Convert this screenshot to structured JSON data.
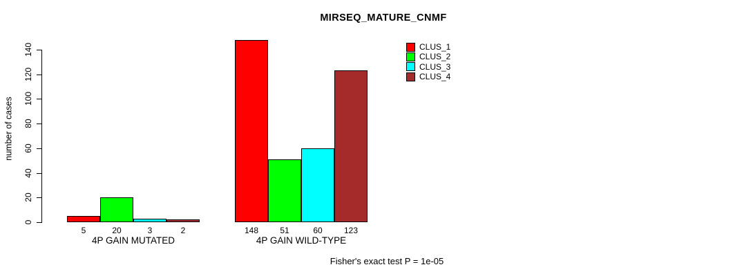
{
  "page": {
    "background_color": "#FFFFFF",
    "text_color": "#000000"
  },
  "chart_data": {
    "type": "bar",
    "title": "MIRSEQ_MATURE_CNMF",
    "ylabel": "number of cases",
    "xlabel": "",
    "ylim": [
      0,
      140
    ],
    "yticks": [
      0,
      20,
      40,
      60,
      80,
      100,
      120,
      140
    ],
    "grid": false,
    "legend_position": "top-right",
    "categories": [
      "4P GAIN MUTATED",
      "4P GAIN WILD-TYPE"
    ],
    "series": [
      {
        "name": "CLUS_1",
        "color": "#FF0000",
        "values": [
          5,
          148
        ]
      },
      {
        "name": "CLUS_2",
        "color": "#00FF00",
        "values": [
          20,
          51
        ]
      },
      {
        "name": "CLUS_3",
        "color": "#00FFFF",
        "values": [
          3,
          60
        ]
      },
      {
        "name": "CLUS_4",
        "color": "#A52A2A",
        "values": [
          2,
          123
        ]
      }
    ],
    "bar_value_labels": [
      [
        5,
        20,
        3,
        2
      ],
      [
        148,
        51,
        60,
        123
      ]
    ],
    "footnote": "Fisher's exact test P = 1e-05"
  }
}
